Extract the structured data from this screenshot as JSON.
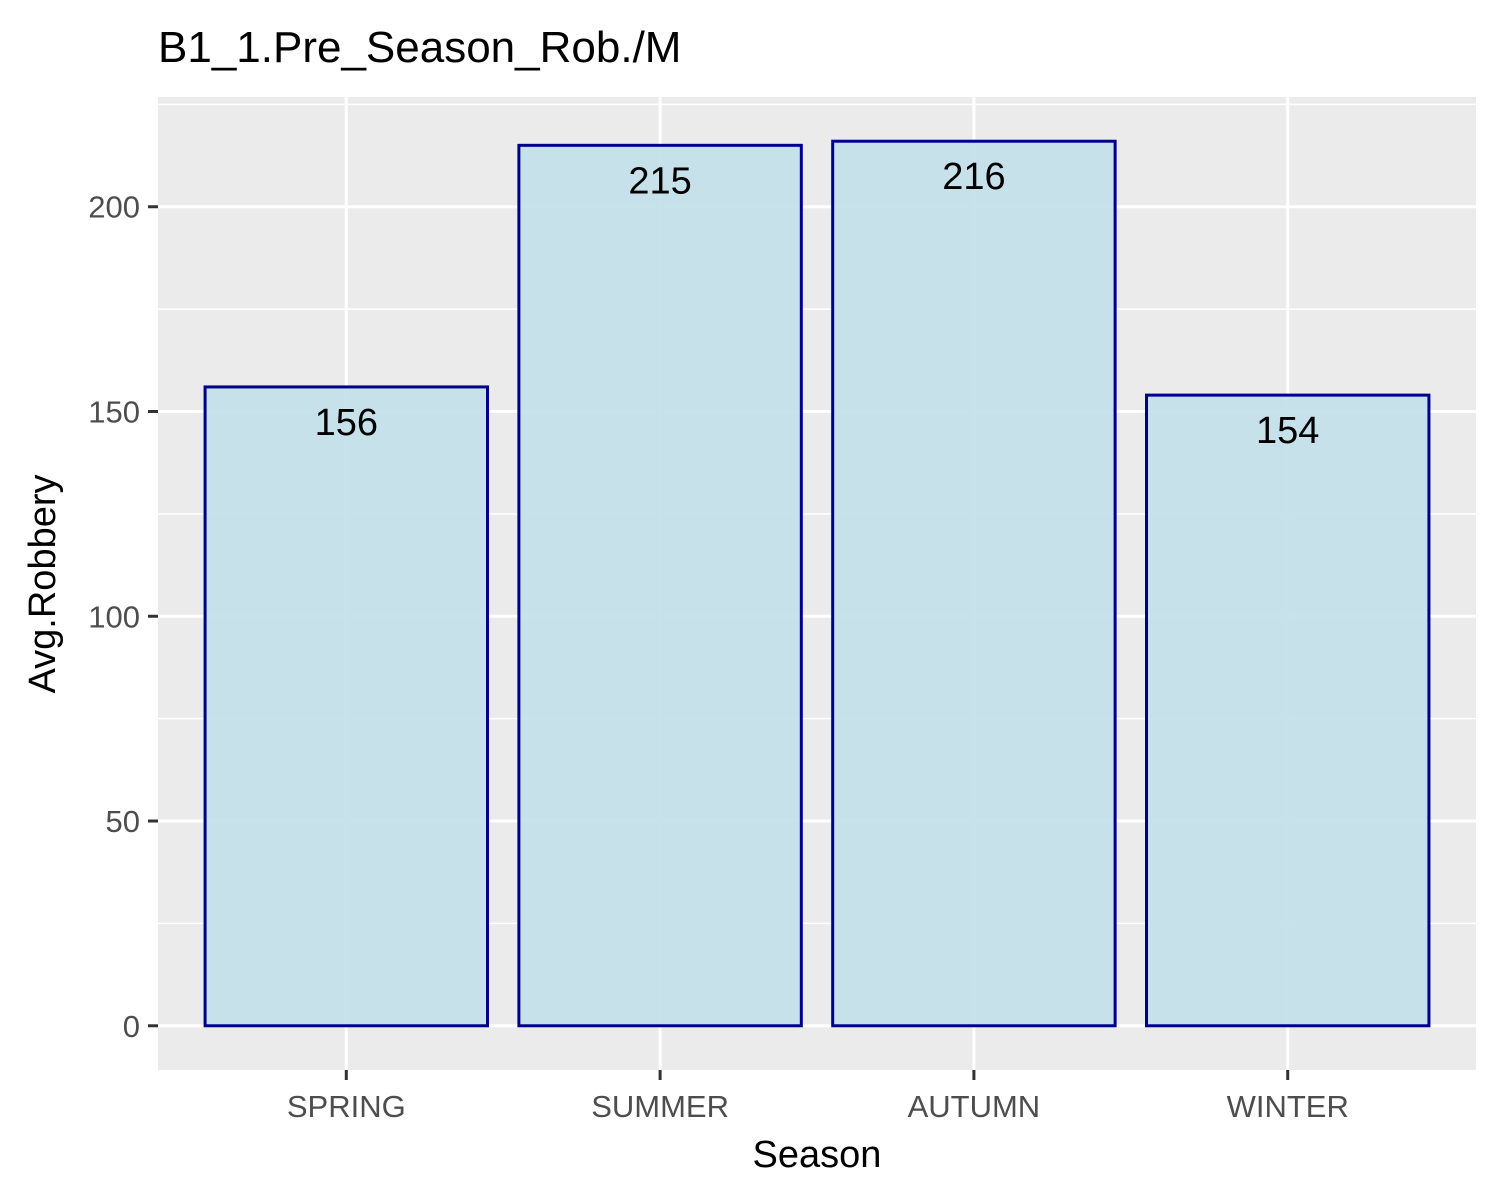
{
  "chart_data": {
    "type": "bar",
    "title": "B1_1.Pre_Season_Rob./M",
    "xlabel": "Season",
    "ylabel": "Avg.Robbery",
    "categories": [
      "SPRING",
      "SUMMER",
      "AUTUMN",
      "WINTER"
    ],
    "values": [
      156,
      215,
      216,
      154
    ],
    "data_labels": [
      "156",
      "215",
      "216",
      "154"
    ],
    "ylim": [
      -10.8,
      226.8
    ],
    "yticks": [
      0,
      50,
      100,
      150,
      200
    ],
    "grid": true,
    "legend": "none",
    "colors": {
      "panel_background": "#ebebeb",
      "grid": "#ffffff",
      "bar_fill": "#c2dfe9",
      "bar_stroke": "#00008b",
      "tick_mark": "#333333"
    }
  }
}
